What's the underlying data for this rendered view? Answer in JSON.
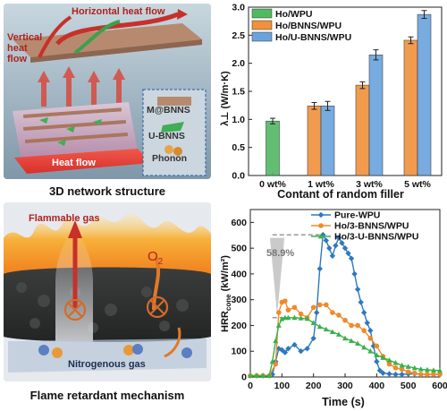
{
  "top_left": {
    "labels": {
      "horizontal": "Horizontal heat flow",
      "vertical": "Vertical heat flow",
      "heat_flow": "Heat flow",
      "m_bnns": "M@BNNS",
      "u_bnns": "U-BNNS",
      "phonon": "Phonon"
    },
    "caption": "3D network structure"
  },
  "bottom_left": {
    "labels": {
      "flammable": "Flammable gas",
      "o2": "O",
      "o2_sub": "2",
      "nitrogen": "Nitrogenous gas"
    },
    "caption": "Flame retardant mechanism"
  },
  "chart_data": [
    {
      "type": "bar",
      "categories": [
        "0 wt%",
        "1 wt%",
        "3 wt%",
        "5 wt%"
      ],
      "series": [
        {
          "name": "Ho/WPU",
          "values": [
            0.97,
            null,
            null,
            null
          ],
          "errors": [
            0.05,
            null,
            null,
            null
          ],
          "color": "#52b963"
        },
        {
          "name": "Ho/BNNS/WPU",
          "values": [
            null,
            1.24,
            1.61,
            2.41
          ],
          "errors": [
            null,
            0.06,
            0.06,
            0.06
          ],
          "color": "#f0913c"
        },
        {
          "name": "Ho/U-BNNS/WPU",
          "values": [
            null,
            1.24,
            2.15,
            2.87
          ],
          "errors": [
            null,
            0.08,
            0.09,
            0.07
          ],
          "color": "#6aa3dc"
        }
      ],
      "xlabel": "Contant of random filler",
      "ylabel": "λ⊥ (W/m·K)",
      "ylim": [
        0,
        3.0
      ],
      "yticks": [
        "0.0",
        "0.5",
        "1.0",
        "1.5",
        "2.0",
        "2.5",
        "3.0"
      ],
      "legend": "top-left"
    },
    {
      "type": "line",
      "xlabel": "Time (s)",
      "ylabel": "HRRcone (kW/m²)",
      "ylabel_main": "HRR",
      "ylabel_sub": "cone",
      "ylabel_unit": " (kW/m²)",
      "xlim": [
        0,
        600
      ],
      "ylim": [
        0,
        650
      ],
      "xticks": [
        "0",
        "100",
        "200",
        "300",
        "400",
        "500",
        "600"
      ],
      "yticks": [
        "0",
        "100",
        "200",
        "300",
        "400",
        "500",
        "600"
      ],
      "legend": "top-right",
      "annotation": "58.9%",
      "series": [
        {
          "name": "Pure-WPU",
          "color": "#2e78be",
          "marker": "diamond",
          "x": [
            0,
            20,
            40,
            60,
            70,
            80,
            90,
            100,
            110,
            120,
            140,
            160,
            180,
            200,
            210,
            220,
            230,
            240,
            250,
            260,
            270,
            280,
            290,
            300,
            310,
            320,
            330,
            340,
            350,
            360,
            370,
            380,
            390,
            400,
            410,
            420,
            440,
            460,
            480,
            500,
            520,
            540,
            560,
            580,
            600
          ],
          "y": [
            5,
            5,
            5,
            5,
            10,
            60,
            110,
            105,
            95,
            110,
            125,
            100,
            110,
            150,
            250,
            420,
            552,
            530,
            500,
            470,
            510,
            540,
            520,
            500,
            480,
            460,
            400,
            340,
            290,
            250,
            210,
            180,
            120,
            60,
            25,
            15,
            12,
            10,
            10,
            12,
            12,
            10,
            10,
            10,
            10
          ]
        },
        {
          "name": "Ho/3-BNNS/WPU",
          "color": "#ef8a2a",
          "marker": "circle",
          "x": [
            0,
            20,
            40,
            60,
            80,
            90,
            100,
            110,
            120,
            140,
            160,
            180,
            200,
            220,
            240,
            260,
            280,
            300,
            320,
            340,
            360,
            380,
            400,
            420,
            440,
            460,
            480,
            500,
            520,
            540,
            560,
            580,
            600
          ],
          "y": [
            5,
            5,
            5,
            5,
            50,
            250,
            290,
            295,
            260,
            270,
            245,
            230,
            270,
            280,
            280,
            250,
            240,
            220,
            200,
            200,
            180,
            150,
            120,
            80,
            50,
            35,
            30,
            20,
            15,
            10,
            10,
            10,
            10
          ]
        },
        {
          "name": "Ho/3-U-BNNS/WPU",
          "color": "#3ab14a",
          "marker": "triangle",
          "x": [
            0,
            20,
            40,
            60,
            70,
            80,
            90,
            100,
            110,
            120,
            140,
            160,
            180,
            200,
            220,
            240,
            260,
            280,
            300,
            320,
            340,
            360,
            380,
            400,
            420,
            440,
            460,
            480,
            500,
            520,
            540,
            560,
            580,
            600
          ],
          "y": [
            5,
            5,
            5,
            5,
            60,
            140,
            200,
            225,
            230,
            230,
            230,
            228,
            226,
            210,
            195,
            185,
            175,
            165,
            150,
            140,
            130,
            115,
            100,
            85,
            75,
            65,
            55,
            45,
            40,
            35,
            30,
            28,
            26,
            25
          ]
        }
      ]
    }
  ]
}
